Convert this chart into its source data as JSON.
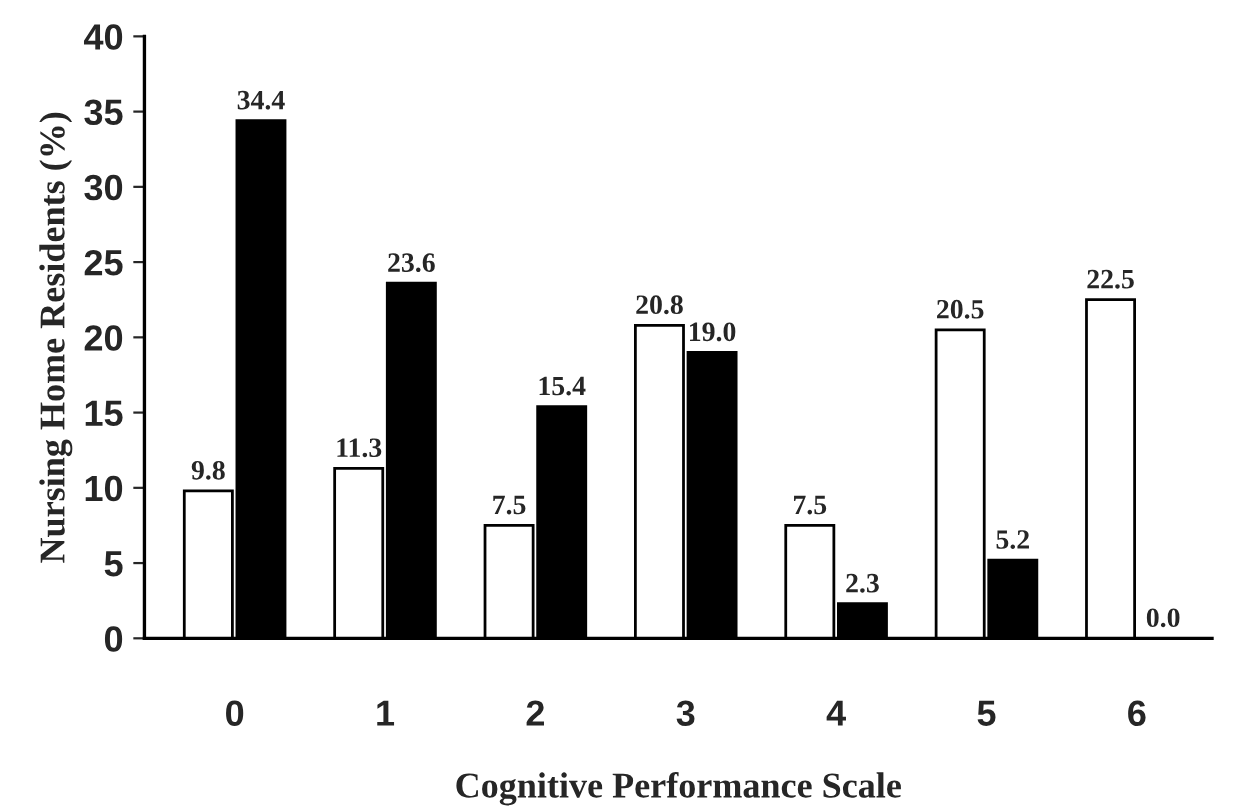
{
  "chart_data": {
    "type": "bar",
    "xlabel": "Cognitive Performance Scale",
    "ylabel": "Nursing Home Residents (%)",
    "categories": [
      "0",
      "1",
      "2",
      "3",
      "4",
      "5",
      "6"
    ],
    "series": [
      {
        "color": "#ffffff",
        "values": [
          9.8,
          11.3,
          7.5,
          20.8,
          7.5,
          20.5,
          22.5
        ],
        "value_labels": [
          "9.8",
          "11.3",
          "7.5",
          "20.8",
          "7.5",
          "20.5",
          "22.5"
        ]
      },
      {
        "color": "#000000",
        "values": [
          34.4,
          23.6,
          15.4,
          19.0,
          2.3,
          5.2,
          0.0
        ],
        "value_labels": [
          "34.4",
          "23.6",
          "15.4",
          "19.0",
          "2.3",
          "5.2",
          "0.0"
        ]
      }
    ],
    "ylim": [
      0,
      40
    ],
    "yticks": [
      0,
      5,
      10,
      15,
      20,
      25,
      30,
      35,
      40
    ],
    "grid": false
  }
}
